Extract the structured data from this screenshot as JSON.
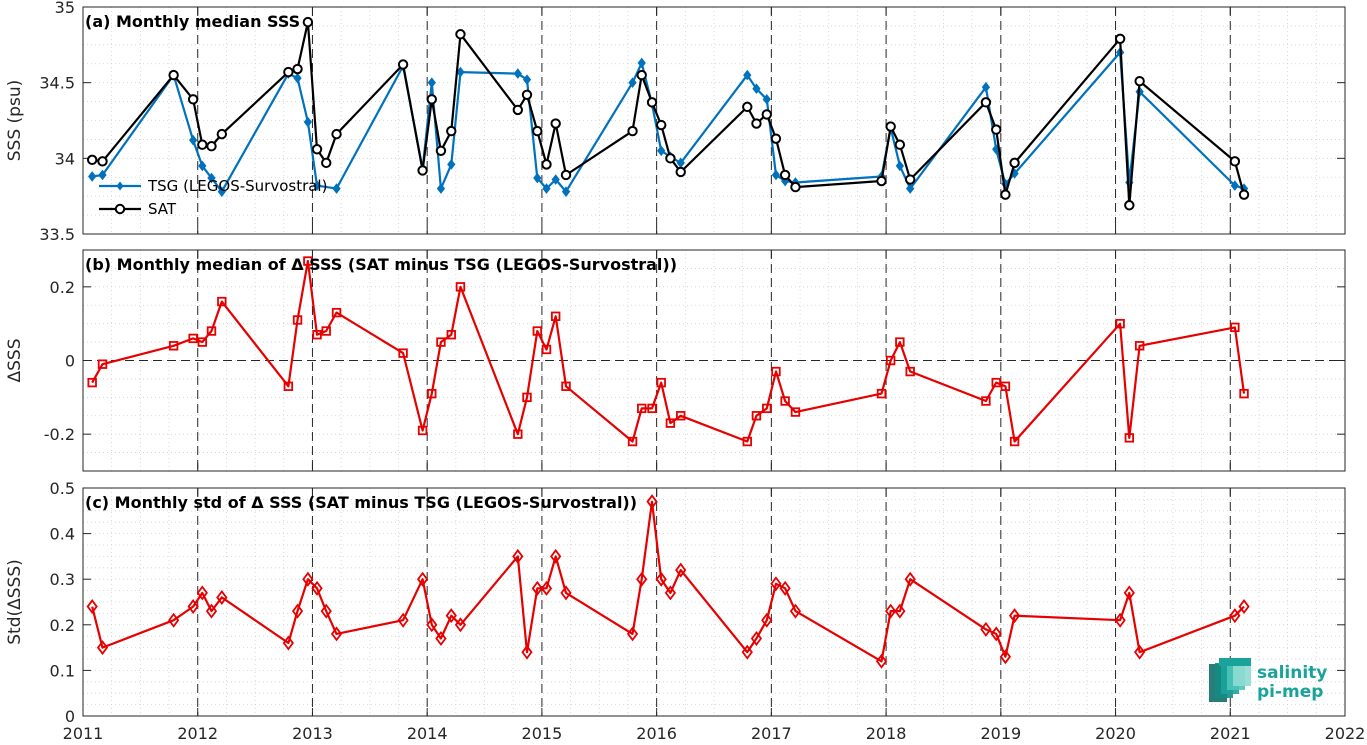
{
  "chart_data": [
    {
      "type": "line",
      "title": "(a) Monthly median SSS",
      "xlabel": "",
      "ylabel": "SSS (psu)",
      "xlim": [
        2011,
        2022
      ],
      "ylim": [
        33.5,
        35
      ],
      "x_ticks": [
        2011,
        2012,
        2013,
        2014,
        2015,
        2016,
        2017,
        2018,
        2019,
        2020,
        2021,
        2022
      ],
      "x_tick_labels": [],
      "y_ticks": [
        33.5,
        34,
        34.5,
        35
      ],
      "y_tick_labels": [
        "33.5",
        "34",
        "34.5",
        "35"
      ],
      "grid": "minor dotted",
      "legend": "left, lower part of panel",
      "series": [
        {
          "name": "TSG (LEGOS-Survostral)",
          "color": "#0072bd",
          "marker": "filled-diamond",
          "x": [
            2011.08,
            2011.17,
            2011.79,
            2011.96,
            2012.04,
            2012.12,
            2012.21,
            2012.79,
            2012.87,
            2012.96,
            2013.04,
            2013.21,
            2013.79,
            2013.96,
            2014.04,
            2014.12,
            2014.21,
            2014.29,
            2014.79,
            2014.87,
            2014.96,
            2015.04,
            2015.12,
            2015.21,
            2015.79,
            2015.87,
            2015.96,
            2016.04,
            2016.12,
            2016.21,
            2016.79,
            2016.87,
            2016.96,
            2017.04,
            2017.12,
            2017.21,
            2017.96,
            2018.04,
            2018.12,
            2018.21,
            2018.87,
            2018.96,
            2019.04,
            2019.12,
            2020.04,
            2020.12,
            2020.21,
            2021.04,
            2021.12
          ],
          "values": [
            33.88,
            33.89,
            34.55,
            34.12,
            33.95,
            33.87,
            33.78,
            34.56,
            34.53,
            34.24,
            33.82,
            33.8,
            34.61,
            33.93,
            34.5,
            33.8,
            33.96,
            34.57,
            34.56,
            34.52,
            33.87,
            33.8,
            33.86,
            33.78,
            34.5,
            34.63,
            34.36,
            34.05,
            34.01,
            33.97,
            34.55,
            34.46,
            34.39,
            33.89,
            33.85,
            33.84,
            33.88,
            34.2,
            33.95,
            33.8,
            34.47,
            34.06,
            33.83,
            33.9,
            34.7,
            33.84,
            34.44,
            33.82,
            33.8
          ]
        },
        {
          "name": "SAT",
          "color": "#000000",
          "marker": "open-circle",
          "x": [
            2011.08,
            2011.17,
            2011.79,
            2011.96,
            2012.04,
            2012.12,
            2012.21,
            2012.79,
            2012.87,
            2012.96,
            2013.04,
            2013.12,
            2013.21,
            2013.79,
            2013.96,
            2014.04,
            2014.12,
            2014.21,
            2014.29,
            2014.79,
            2014.87,
            2014.96,
            2015.04,
            2015.12,
            2015.21,
            2015.79,
            2015.87,
            2015.96,
            2016.04,
            2016.12,
            2016.21,
            2016.79,
            2016.87,
            2016.96,
            2017.04,
            2017.12,
            2017.21,
            2017.96,
            2018.04,
            2018.12,
            2018.21,
            2018.87,
            2018.96,
            2019.04,
            2019.12,
            2020.04,
            2020.12,
            2020.21,
            2021.04,
            2021.12
          ],
          "values": [
            33.99,
            33.98,
            34.55,
            34.39,
            34.09,
            34.08,
            34.16,
            34.57,
            34.59,
            34.9,
            34.06,
            33.97,
            34.16,
            34.62,
            33.92,
            34.39,
            34.05,
            34.18,
            34.82,
            34.32,
            34.42,
            34.18,
            33.96,
            34.23,
            33.89,
            34.18,
            34.55,
            34.37,
            34.22,
            34.0,
            33.91,
            34.34,
            34.23,
            34.29,
            34.13,
            33.89,
            33.81,
            33.85,
            34.21,
            34.09,
            33.86,
            34.37,
            34.19,
            33.76,
            33.97,
            34.79,
            33.69,
            34.51,
            33.98,
            33.76
          ]
        }
      ]
    },
    {
      "type": "line",
      "title": "(b) Monthly median of Δ SSS (SAT minus TSG (LEGOS-Survostral))",
      "xlabel": "",
      "ylabel": "ΔSSS",
      "xlim": [
        2011,
        2022
      ],
      "ylim": [
        -0.3,
        0.3
      ],
      "x_ticks": [
        2011,
        2012,
        2013,
        2014,
        2015,
        2016,
        2017,
        2018,
        2019,
        2020,
        2021,
        2022
      ],
      "x_tick_labels": [],
      "y_ticks": [
        -0.2,
        0,
        0.2
      ],
      "y_tick_labels": [
        "-0.2",
        "0",
        "0.2"
      ],
      "grid": "minor dotted",
      "reference_line": 0,
      "series": [
        {
          "color": "#e60000",
          "marker": "open-square",
          "x": [
            2011.08,
            2011.17,
            2011.79,
            2011.96,
            2012.04,
            2012.12,
            2012.21,
            2012.79,
            2012.87,
            2012.96,
            2013.04,
            2013.12,
            2013.21,
            2013.79,
            2013.96,
            2014.04,
            2014.12,
            2014.21,
            2014.29,
            2014.79,
            2014.87,
            2014.96,
            2015.04,
            2015.12,
            2015.21,
            2015.79,
            2015.87,
            2015.96,
            2016.04,
            2016.12,
            2016.21,
            2016.79,
            2016.87,
            2016.96,
            2017.04,
            2017.12,
            2017.21,
            2017.96,
            2018.04,
            2018.12,
            2018.21,
            2018.87,
            2018.96,
            2019.04,
            2019.12,
            2020.04,
            2020.12,
            2020.21,
            2021.04,
            2021.12
          ],
          "values": [
            -0.06,
            -0.01,
            0.04,
            0.06,
            0.05,
            0.08,
            0.16,
            -0.07,
            0.11,
            0.27,
            0.07,
            0.08,
            0.13,
            0.02,
            -0.19,
            -0.09,
            0.05,
            0.07,
            0.2,
            -0.2,
            -0.1,
            0.08,
            0.03,
            0.12,
            -0.07,
            -0.22,
            -0.13,
            -0.13,
            -0.06,
            -0.17,
            -0.15,
            -0.22,
            -0.15,
            -0.13,
            -0.03,
            -0.11,
            -0.14,
            -0.09,
            0.0,
            0.05,
            -0.03,
            -0.11,
            -0.06,
            -0.07,
            -0.22,
            0.1,
            -0.21,
            0.04,
            0.09,
            -0.09
          ]
        }
      ]
    },
    {
      "type": "line",
      "title": "(c) Monthly std of Δ SSS (SAT minus TSG (LEGOS-Survostral))",
      "xlabel": "",
      "ylabel": "Std(ΔSSS)",
      "xlim": [
        2011,
        2022
      ],
      "ylim": [
        0,
        0.5
      ],
      "x_ticks": [
        2011,
        2012,
        2013,
        2014,
        2015,
        2016,
        2017,
        2018,
        2019,
        2020,
        2021,
        2022
      ],
      "x_tick_labels": [
        "2011",
        "2012",
        "2013",
        "2014",
        "2015",
        "2016",
        "2017",
        "2018",
        "2019",
        "2020",
        "2021",
        "2022"
      ],
      "y_ticks": [
        0,
        0.1,
        0.2,
        0.3,
        0.4,
        0.5
      ],
      "y_tick_labels": [
        "0",
        "0.1",
        "0.2",
        "0.3",
        "0.4",
        "0.5"
      ],
      "grid": "minor dotted",
      "series": [
        {
          "color": "#e60000",
          "marker": "open-diamond",
          "x": [
            2011.08,
            2011.17,
            2011.79,
            2011.96,
            2012.04,
            2012.12,
            2012.21,
            2012.79,
            2012.87,
            2012.96,
            2013.04,
            2013.12,
            2013.21,
            2013.79,
            2013.96,
            2014.04,
            2014.12,
            2014.21,
            2014.29,
            2014.79,
            2014.87,
            2014.96,
            2015.04,
            2015.12,
            2015.21,
            2015.79,
            2015.87,
            2015.96,
            2016.04,
            2016.12,
            2016.21,
            2016.79,
            2016.87,
            2016.96,
            2017.04,
            2017.12,
            2017.21,
            2017.96,
            2018.04,
            2018.12,
            2018.21,
            2018.87,
            2018.96,
            2019.04,
            2019.12,
            2020.04,
            2020.12,
            2020.21,
            2021.04,
            2021.12
          ],
          "values": [
            0.24,
            0.15,
            0.21,
            0.24,
            0.27,
            0.23,
            0.26,
            0.16,
            0.23,
            0.3,
            0.28,
            0.23,
            0.18,
            0.21,
            0.3,
            0.2,
            0.17,
            0.22,
            0.2,
            0.35,
            0.14,
            0.28,
            0.28,
            0.35,
            0.27,
            0.18,
            0.3,
            0.47,
            0.3,
            0.27,
            0.32,
            0.14,
            0.17,
            0.21,
            0.29,
            0.28,
            0.23,
            0.12,
            0.23,
            0.23,
            0.3,
            0.19,
            0.18,
            0.13,
            0.22,
            0.21,
            0.27,
            0.14,
            0.22,
            0.24
          ]
        }
      ]
    }
  ],
  "logo": {
    "line1": "salinity",
    "line2": "pi-mep",
    "color": "#1aa39a"
  }
}
